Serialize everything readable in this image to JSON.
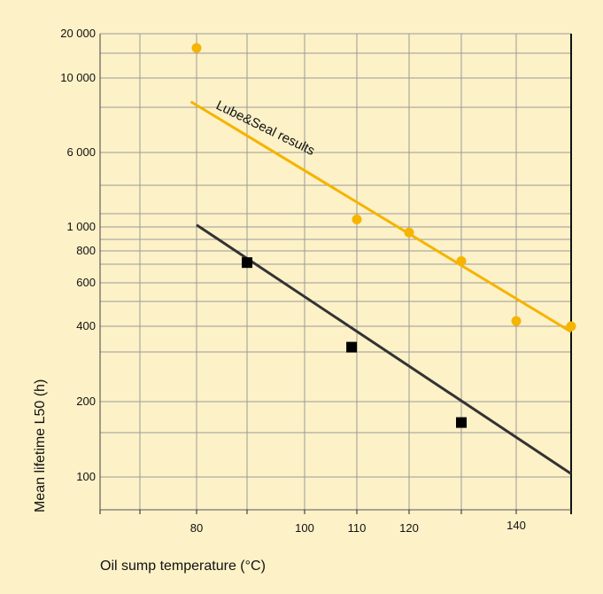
{
  "chart_data": {
    "type": "scatter",
    "title": "",
    "xlabel": "Oil sump temperature (°C)",
    "ylabel": "Mean lifetime L50  (h)",
    "y_scale": "log (non-uniform tick spacing)",
    "x_ticks": [
      {
        "value": 80,
        "label": "80"
      },
      {
        "value": 100,
        "label": "100"
      },
      {
        "value": 110,
        "label": "110"
      },
      {
        "value": 120,
        "label": "120"
      },
      {
        "value": 140,
        "label": "140"
      }
    ],
    "y_ticks": [
      {
        "value": 20000,
        "label": "20 000"
      },
      {
        "value": 10000,
        "label": "10 000"
      },
      {
        "value": 6000,
        "label": "6 000"
      },
      {
        "value": 1000,
        "label": "1 000"
      },
      {
        "value": 800,
        "label": "800"
      },
      {
        "value": 600,
        "label": "600"
      },
      {
        "value": 400,
        "label": "400"
      },
      {
        "value": 200,
        "label": "200"
      },
      {
        "value": 100,
        "label": "100"
      }
    ],
    "grid": true,
    "annotations": [
      {
        "text": "Lube&Seal results"
      }
    ],
    "series": [
      {
        "color": "#f5b400",
        "marker": "circle",
        "points": [
          {
            "x": 80,
            "y": 16000
          },
          {
            "x": 110,
            "y": 1200
          },
          {
            "x": 120,
            "y": 950
          },
          {
            "x": 130,
            "y": 730
          },
          {
            "x": 140,
            "y": 420
          },
          {
            "x": 150,
            "y": 400
          }
        ],
        "trend": [
          {
            "x": 79,
            "y": 8500
          },
          {
            "x": 150,
            "y": 380
          }
        ]
      },
      {
        "color": "#000000",
        "marker": "square",
        "trend_color": "#333333",
        "points": [
          {
            "x": 90,
            "y": 720
          },
          {
            "x": 109,
            "y": 330
          },
          {
            "x": 130,
            "y": 165
          }
        ],
        "trend": [
          {
            "x": 80,
            "y": 1050
          },
          {
            "x": 150,
            "y": 103
          }
        ]
      }
    ]
  }
}
